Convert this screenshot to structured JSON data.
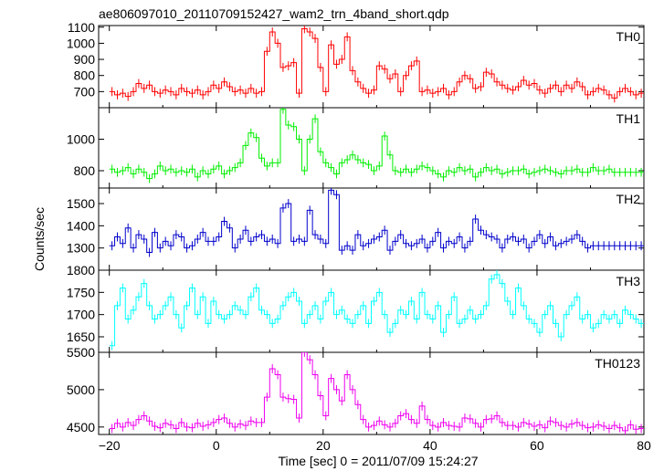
{
  "chart_data": {
    "type": "line",
    "style": "step-with-error-bars",
    "title": "ae806097010_20110709152427_wam2_trn_4band_short.qdp",
    "xlabel": "Time [sec] 0 = 2011/07/09 15:24:27",
    "ylabel": "Counts/sec",
    "xlim": [
      -22,
      80
    ],
    "x_ticks": [
      "−20",
      "0",
      "20",
      "40",
      "60",
      "80"
    ],
    "bin_width_sec": 1.0,
    "x_start": -20,
    "panels": [
      {
        "name": "TH0",
        "color": "#ff0000",
        "ylim": [
          600,
          1110
        ],
        "y_ticks": [
          700,
          800,
          900,
          1000,
          1100
        ],
        "values": [
          700,
          680,
          690,
          670,
          700,
          750,
          720,
          740,
          700,
          690,
          710,
          700,
          680,
          720,
          700,
          690,
          710,
          680,
          700,
          740,
          720,
          760,
          730,
          700,
          710,
          690,
          720,
          690,
          700,
          950,
          1070,
          1000,
          850,
          860,
          880,
          690,
          1090,
          1070,
          1030,
          850,
          700,
          990,
          870,
          900,
          1040,
          830,
          760,
          720,
          690,
          710,
          860,
          840,
          780,
          810,
          700,
          800,
          860,
          890,
          700,
          710,
          690,
          700,
          720,
          680,
          700,
          760,
          800,
          780,
          720,
          730,
          820,
          810,
          760,
          740,
          720,
          710,
          730,
          770,
          740,
          750,
          710,
          690,
          720,
          740,
          700,
          740,
          720,
          760,
          730,
          680,
          700,
          720,
          710,
          680,
          660,
          700,
          720,
          700,
          680,
          690
        ]
      },
      {
        "name": "TH1",
        "color": "#00ee00",
        "ylim": [
          690,
          1200
        ],
        "y_ticks": [
          800,
          1000
        ],
        "values": [
          810,
          790,
          800,
          820,
          780,
          810,
          790,
          750,
          780,
          830,
          800,
          810,
          790,
          800,
          790,
          810,
          760,
          800,
          780,
          810,
          830,
          780,
          800,
          820,
          850,
          960,
          1040,
          1010,
          880,
          830,
          850,
          850,
          1190,
          1090,
          1080,
          1000,
          800,
          1000,
          1130,
          920,
          850,
          820,
          780,
          850,
          870,
          900,
          870,
          850,
          840,
          800,
          830,
          1020,
          900,
          800,
          790,
          810,
          790,
          810,
          830,
          820,
          800,
          780,
          760,
          800,
          790,
          820,
          800,
          810,
          760,
          790,
          820,
          800,
          810,
          780,
          790,
          800,
          800,
          810,
          780,
          790,
          800,
          810,
          800,
          790,
          780,
          800,
          800,
          810,
          790,
          790,
          820,
          800,
          800,
          810,
          790,
          790,
          790,
          790,
          790,
          790,
          790,
          790
        ]
      },
      {
        "name": "TH2",
        "color": "#0000cc",
        "ylim": [
          1200,
          1570
        ],
        "y_ticks": [
          1300,
          1400,
          1500
        ],
        "values": [
          1310,
          1350,
          1320,
          1390,
          1300,
          1360,
          1340,
          1280,
          1370,
          1300,
          1330,
          1310,
          1360,
          1350,
          1300,
          1310,
          1340,
          1370,
          1330,
          1330,
          1350,
          1420,
          1390,
          1300,
          1340,
          1380,
          1330,
          1350,
          1360,
          1330,
          1340,
          1320,
          1480,
          1500,
          1330,
          1340,
          1330,
          1470,
          1360,
          1340,
          1320,
          1560,
          1540,
          1290,
          1310,
          1290,
          1360,
          1310,
          1320,
          1340,
          1350,
          1380,
          1290,
          1330,
          1360,
          1320,
          1310,
          1320,
          1340,
          1300,
          1330,
          1370,
          1300,
          1330,
          1320,
          1350,
          1300,
          1330,
          1430,
          1380,
          1360,
          1350,
          1340,
          1300,
          1340,
          1350,
          1330,
          1340,
          1300,
          1330,
          1360,
          1320,
          1350,
          1310,
          1320,
          1330,
          1340,
          1360,
          1330,
          1300,
          1310,
          1310,
          1310,
          1310,
          1310,
          1310,
          1310,
          1310,
          1310,
          1310
        ]
      },
      {
        "name": "TH3",
        "color": "#00ffff",
        "ylim": [
          1615,
          1800
        ],
        "y_ticks": [
          1650,
          1700,
          1750,
          1800
        ],
        "values": [
          1630,
          1720,
          1760,
          1690,
          1710,
          1740,
          1770,
          1720,
          1690,
          1700,
          1720,
          1740,
          1700,
          1670,
          1720,
          1760,
          1700,
          1740,
          1680,
          1730,
          1700,
          1690,
          1700,
          1720,
          1710,
          1700,
          1740,
          1760,
          1710,
          1700,
          1680,
          1690,
          1720,
          1740,
          1750,
          1730,
          1680,
          1700,
          1720,
          1690,
          1730,
          1750,
          1700,
          1710,
          1690,
          1680,
          1700,
          1720,
          1680,
          1730,
          1750,
          1700,
          1660,
          1680,
          1710,
          1700,
          1730,
          1690,
          1750,
          1700,
          1690,
          1720,
          1660,
          1700,
          1740,
          1680,
          1690,
          1710,
          1690,
          1700,
          1720,
          1780,
          1790,
          1770,
          1730,
          1700,
          1760,
          1720,
          1690,
          1680,
          1660,
          1700,
          1720,
          1680,
          1650,
          1700,
          1720,
          1740,
          1690,
          1700,
          1670,
          1680,
          1700,
          1690,
          1700,
          1680,
          1710,
          1700,
          1690,
          1680
        ]
      },
      {
        "name": "TH0123",
        "color": "#ee00ee",
        "ylim": [
          4400,
          5500
        ],
        "y_ticks": [
          4500,
          5000,
          5500
        ],
        "values": [
          4480,
          4550,
          4500,
          4560,
          4520,
          4600,
          4650,
          4580,
          4510,
          4490,
          4550,
          4530,
          4480,
          4560,
          4500,
          4490,
          4550,
          4510,
          4530,
          4560,
          4600,
          4620,
          4550,
          4500,
          4540,
          4520,
          4580,
          4560,
          4560,
          4900,
          5280,
          5200,
          4900,
          4880,
          4870,
          4620,
          5500,
          5400,
          5200,
          4920,
          4650,
          5150,
          5000,
          4850,
          5200,
          5000,
          4800,
          4600,
          4500,
          4520,
          4580,
          4530,
          4500,
          4550,
          4650,
          4680,
          4600,
          4550,
          4780,
          4600,
          4520,
          4500,
          4560,
          4520,
          4510,
          4500,
          4620,
          4610,
          4550,
          4500,
          4600,
          4610,
          4650,
          4560,
          4520,
          4520,
          4500,
          4560,
          4540,
          4510,
          4530,
          4490,
          4580,
          4560,
          4520,
          4500,
          4540,
          4560,
          4520,
          4490,
          4500,
          4530,
          4510,
          4480,
          4520,
          4490,
          4450,
          4530,
          4470,
          4480
        ]
      }
    ]
  }
}
